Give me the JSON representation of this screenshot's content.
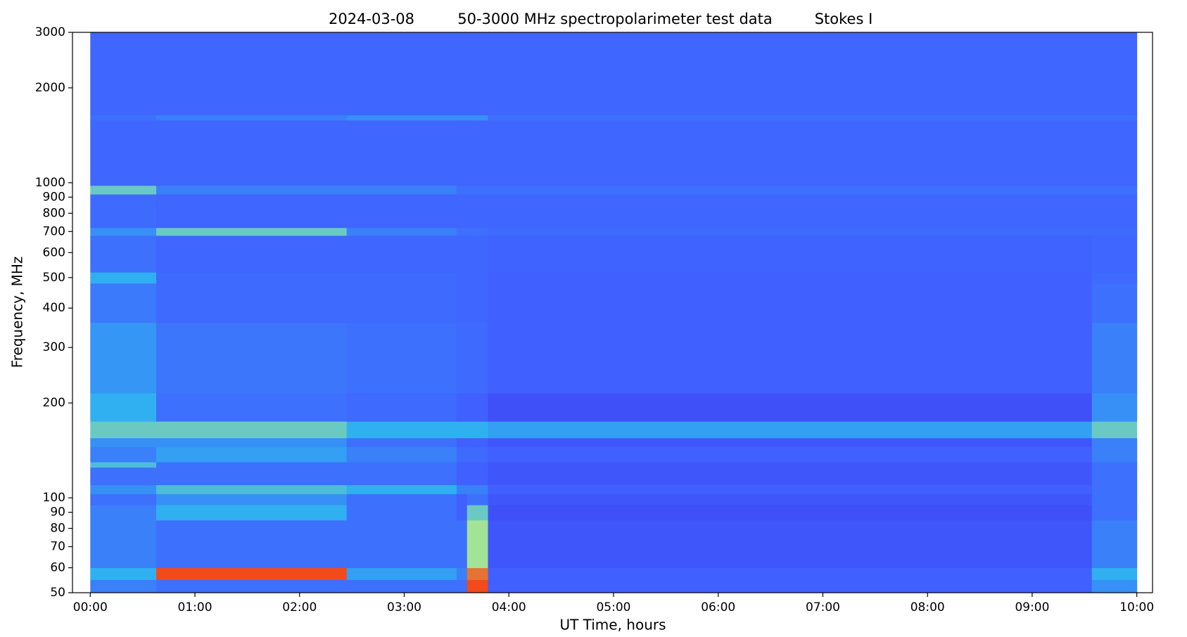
{
  "chart_data": {
    "type": "spectrogram",
    "title": "2024-03-08",
    "subtitle": "50-3000 MHz spectropolarimeter test data",
    "annotation": "Stokes I",
    "xlabel": "UT Time, hours",
    "ylabel": "Frequency, MHz",
    "xlim": [
      -0.17,
      10.15
    ],
    "xticks": [
      {
        "value": 0,
        "label": "00:00"
      },
      {
        "value": 1,
        "label": "01:00"
      },
      {
        "value": 2,
        "label": "02:00"
      },
      {
        "value": 3,
        "label": "03:00"
      },
      {
        "value": 4,
        "label": "04:00"
      },
      {
        "value": 5,
        "label": "05:00"
      },
      {
        "value": 6,
        "label": "06:00"
      },
      {
        "value": 7,
        "label": "07:00"
      },
      {
        "value": 8,
        "label": "08:00"
      },
      {
        "value": 9,
        "label": "09:00"
      },
      {
        "value": 10,
        "label": "10:00"
      }
    ],
    "ylim": [
      50,
      3000
    ],
    "log_y": true,
    "yticks": [
      50,
      60,
      70,
      80,
      90,
      100,
      200,
      300,
      400,
      500,
      600,
      700,
      800,
      900,
      1000,
      2000,
      3000
    ],
    "xbins": [
      0,
      0.63,
      2.45,
      3.5,
      3.6,
      3.8,
      9.57,
      10
    ],
    "ybins": [
      50,
      55,
      60,
      85,
      95,
      103,
      110,
      125,
      130,
      145,
      155,
      175,
      215,
      360,
      480,
      520,
      680,
      720,
      920,
      980,
      1580,
      1640,
      3000
    ],
    "zlim": [
      0,
      1
    ],
    "colormap": [
      "#3a10e0",
      "#4060ff",
      "#30b0f0",
      "#c0f080",
      "#ff2000"
    ],
    "z": [
      [
        0.35,
        0.3,
        0.3,
        0.3,
        0.95,
        0.25,
        0.4
      ],
      [
        0.5,
        0.95,
        0.45,
        0.35,
        0.9,
        0.25,
        0.5
      ],
      [
        0.35,
        0.3,
        0.3,
        0.3,
        0.7,
        0.22,
        0.35
      ],
      [
        0.35,
        0.5,
        0.3,
        0.25,
        0.6,
        0.2,
        0.3
      ],
      [
        0.3,
        0.4,
        0.3,
        0.25,
        0.3,
        0.22,
        0.3
      ],
      [
        0.4,
        0.55,
        0.5,
        0.35,
        0.35,
        0.25,
        0.3
      ],
      [
        0.3,
        0.3,
        0.3,
        0.25,
        0.25,
        0.22,
        0.3
      ],
      [
        0.55,
        0.3,
        0.3,
        0.25,
        0.25,
        0.22,
        0.3
      ],
      [
        0.35,
        0.45,
        0.35,
        0.28,
        0.28,
        0.25,
        0.35
      ],
      [
        0.4,
        0.4,
        0.3,
        0.25,
        0.25,
        0.22,
        0.35
      ],
      [
        0.6,
        0.6,
        0.5,
        0.5,
        0.5,
        0.45,
        0.6
      ],
      [
        0.5,
        0.3,
        0.28,
        0.25,
        0.25,
        0.2,
        0.4
      ],
      [
        0.42,
        0.32,
        0.3,
        0.28,
        0.28,
        0.25,
        0.35
      ],
      [
        0.33,
        0.28,
        0.28,
        0.27,
        0.27,
        0.25,
        0.3
      ],
      [
        0.5,
        0.28,
        0.28,
        0.27,
        0.27,
        0.25,
        0.28
      ],
      [
        0.3,
        0.27,
        0.27,
        0.27,
        0.27,
        0.26,
        0.27
      ],
      [
        0.4,
        0.6,
        0.35,
        0.3,
        0.3,
        0.28,
        0.28
      ],
      [
        0.28,
        0.27,
        0.27,
        0.27,
        0.27,
        0.27,
        0.27
      ],
      [
        0.6,
        0.35,
        0.35,
        0.3,
        0.3,
        0.3,
        0.3
      ],
      [
        0.27,
        0.27,
        0.27,
        0.27,
        0.27,
        0.27,
        0.27
      ],
      [
        0.3,
        0.35,
        0.4,
        0.4,
        0.4,
        0.3,
        0.3
      ],
      [
        0.27,
        0.27,
        0.27,
        0.27,
        0.27,
        0.27,
        0.27
      ]
    ]
  }
}
